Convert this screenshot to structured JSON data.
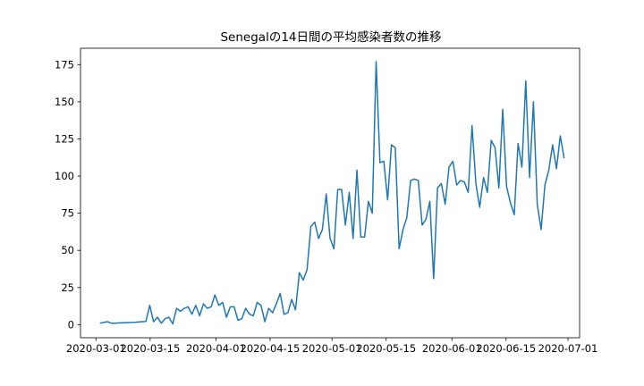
{
  "chart_data": {
    "type": "line",
    "title": "Senegalの14日間の平均感染者数の推移",
    "xlabel": "",
    "ylabel": "",
    "x_start": "2020-03-02",
    "x_end": "2020-06-30",
    "xlim": [
      "2020-02-26",
      "2020-07-04"
    ],
    "ylim": [
      -8.8,
      186
    ],
    "x_ticks": [
      "2020-03-01",
      "2020-03-15",
      "2020-04-01",
      "2020-04-15",
      "2020-05-01",
      "2020-05-15",
      "2020-06-01",
      "2020-06-15",
      "2020-07-01"
    ],
    "y_ticks": [
      0,
      25,
      50,
      75,
      100,
      125,
      150,
      175
    ],
    "series_color": "#1f77b4",
    "grid": false,
    "legend": "none",
    "series": [
      {
        "values": [
          1,
          1.5,
          2,
          1,
          1,
          1.2,
          1.3,
          1.4,
          1.5,
          1.6,
          1.8,
          2,
          2.2,
          13,
          2,
          5,
          1,
          4,
          5,
          0.5,
          11,
          9,
          11,
          12,
          7,
          13,
          6,
          14,
          11,
          12,
          20,
          13,
          15,
          5,
          12,
          12,
          3,
          4,
          11,
          7,
          6,
          15,
          13,
          2,
          11,
          8,
          14,
          21,
          7,
          8,
          17,
          10,
          35,
          30,
          37,
          66,
          69,
          58,
          64,
          88,
          58,
          51,
          91,
          91,
          67,
          89,
          58,
          104,
          59,
          59,
          83,
          75,
          177,
          109,
          110,
          84,
          121,
          119,
          51,
          64,
          72,
          97,
          98,
          97,
          67,
          71,
          83,
          31,
          92,
          95,
          81,
          106,
          110,
          94,
          97,
          96,
          89,
          134,
          95,
          79,
          99,
          89,
          124,
          119,
          92,
          145,
          93,
          82,
          74,
          122,
          106,
          164,
          99,
          150,
          81,
          64,
          94,
          104,
          121,
          105,
          127,
          112
        ]
      }
    ]
  }
}
